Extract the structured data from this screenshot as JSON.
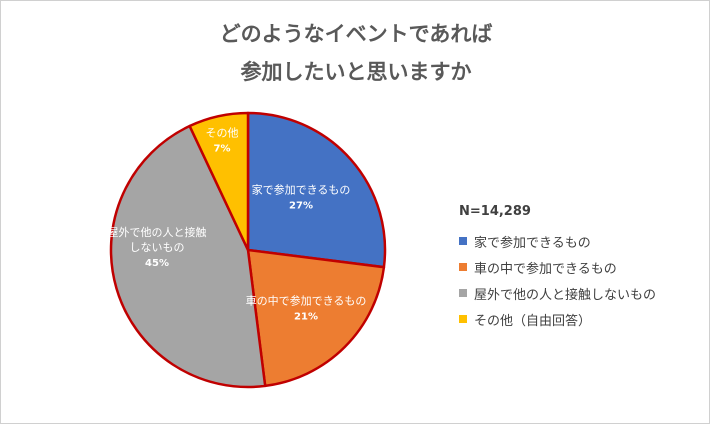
{
  "title_line1": "どのようなイベントであれば",
  "title_line2": "参加したいと思いますか",
  "n_label": "N=14,289",
  "chart_data": {
    "type": "pie",
    "title": "どのようなイベントであれば参加したいと思いますか",
    "slices": [
      {
        "label": "家で参加できるもの",
        "value": 27,
        "value_label": "27%",
        "color": "#4472C4",
        "legend": "家で参加できるもの",
        "slice_label_lines": [
          "家で参加できるもの",
          "27%"
        ]
      },
      {
        "label": "車の中で参加できるもの",
        "value": 21,
        "value_label": "21%",
        "color": "#ED7D31",
        "legend": "車の中で参加できるもの",
        "slice_label_lines": [
          "車の中で参加できるもの",
          "21%"
        ]
      },
      {
        "label": "屋外で他の人と接触しないもの",
        "value": 45,
        "value_label": "45%",
        "color": "#A5A5A5",
        "legend": "屋外で他の人と接触しないもの",
        "slice_label_lines": [
          "屋外で他の人と接触",
          "しないもの",
          "45%"
        ]
      },
      {
        "label": "その他",
        "value": 7,
        "value_label": "7%",
        "color": "#FFC000",
        "legend": "その他（自由回答）",
        "slice_label_lines": [
          "その他",
          "7%"
        ]
      }
    ],
    "legend_position": "right",
    "outline_color": "#C00000"
  }
}
